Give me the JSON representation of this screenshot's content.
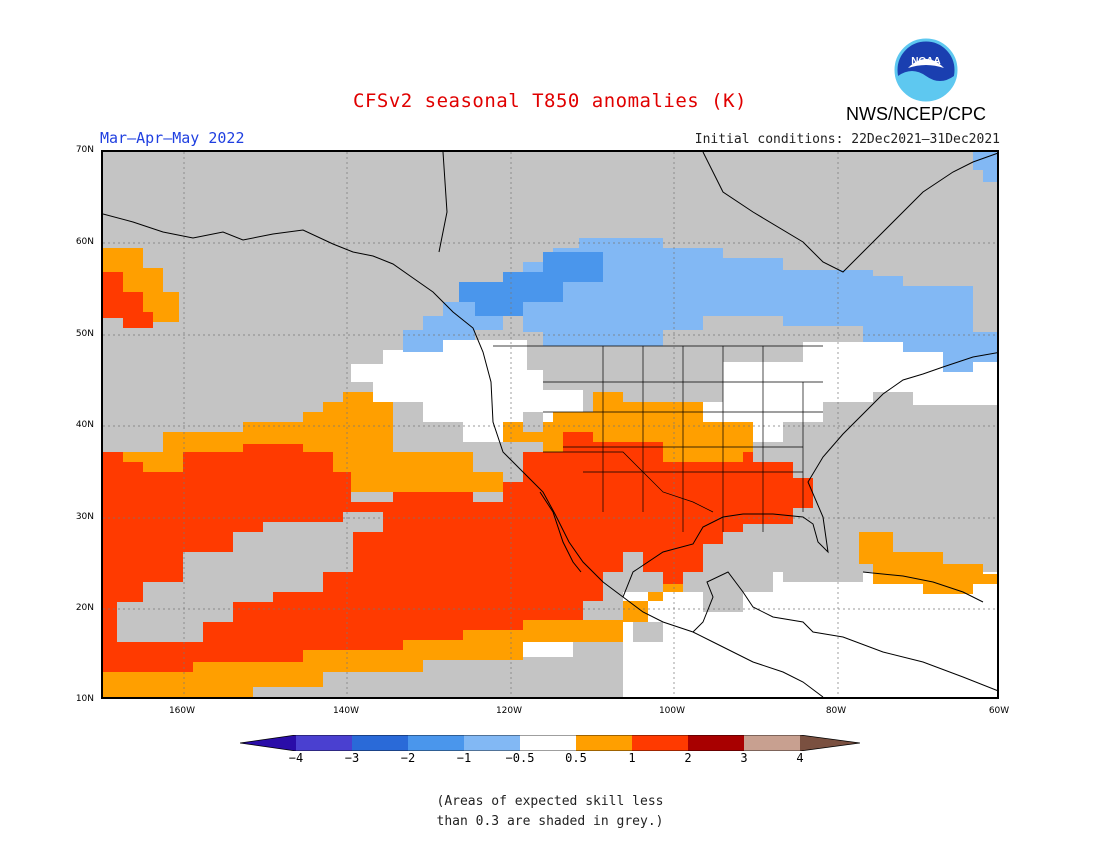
{
  "title": "CFSv2 seasonal T850 anomalies (K)",
  "agency": "NWS/NCEP/CPC",
  "logo_text": "NOAA",
  "season": "Mar–Apr–May 2022",
  "initial_conditions": "Initial conditions: 22Dec2021–31Dec2021",
  "map": {
    "lat_labels": [
      "70N",
      "60N",
      "50N",
      "40N",
      "30N",
      "20N",
      "10N"
    ],
    "lon_labels": [
      "160W",
      "140W",
      "120W",
      "100W",
      "80W",
      "60W"
    ],
    "extent": {
      "lon": [
        -170,
        -60
      ],
      "lat": [
        10,
        70
      ]
    }
  },
  "colorbar": {
    "labels": [
      "−4",
      "−3",
      "−2",
      "−1",
      "−0.5",
      "0.5",
      "1",
      "2",
      "3",
      "4"
    ],
    "colors": [
      "#2a0da8",
      "#4a40d0",
      "#2a6ad8",
      "#4a96ec",
      "#82b8f4",
      "#ffffff",
      "#ff9f00",
      "#ff3a00",
      "#a80000",
      "#c8a090",
      "#7a5040"
    ]
  },
  "footnote": {
    "line1": "(Areas of expected skill less",
    "line2": "than 0.3 are shaded in grey.)"
  }
}
